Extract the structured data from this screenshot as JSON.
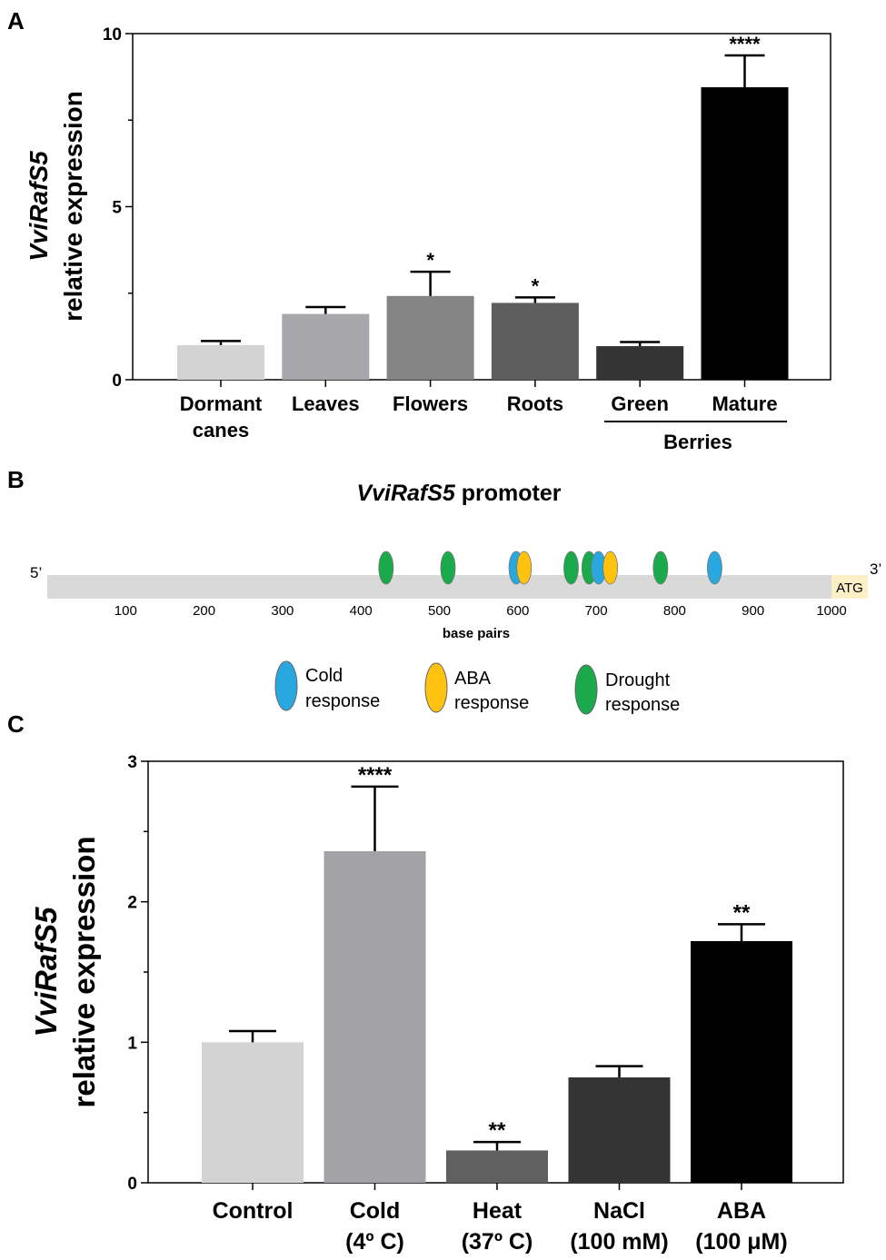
{
  "colors": {
    "axis": "#000000",
    "cold": "#29A8E0",
    "aba": "#FFC20E",
    "drought": "#1BAA4B",
    "promoter_bar": "#D9D9D9",
    "atg_box": "#FDEFC6"
  },
  "panel_a": {
    "letter": "A",
    "chart_data": {
      "type": "bar",
      "ylabel_italic": "VviRafS5",
      "ylabel": "relative expression",
      "ylim": [
        0,
        10
      ],
      "yticks": [
        0,
        5,
        10
      ],
      "bars": [
        {
          "name": "dormant-canes",
          "line1": "Dormant",
          "line2": "canes",
          "value": 1.0,
          "error": 0.12,
          "sig": "",
          "color": "#D3D3D3"
        },
        {
          "name": "leaves",
          "line1": "Leaves",
          "line2": "",
          "value": 1.9,
          "error": 0.2,
          "sig": "",
          "color": "#A7A7AB"
        },
        {
          "name": "flowers",
          "line1": "Flowers",
          "line2": "",
          "value": 2.42,
          "error": 0.7,
          "sig": "*",
          "color": "#848484"
        },
        {
          "name": "roots",
          "line1": "Roots",
          "line2": "",
          "value": 2.22,
          "error": 0.16,
          "sig": "*",
          "color": "#5E5E5E"
        },
        {
          "name": "green-berries",
          "line1": "Green",
          "line2": "",
          "value": 0.97,
          "error": 0.12,
          "sig": "",
          "color": "#343434"
        },
        {
          "name": "mature-berries",
          "line1": "Mature",
          "line2": "",
          "value": 8.45,
          "error": 0.92,
          "sig": "****",
          "color": "#000000"
        }
      ],
      "group_label": "Berries"
    }
  },
  "panel_b": {
    "letter": "B",
    "title_italic": "VviRafS5",
    "title_rest": " promoter",
    "five_prime": "5’",
    "three_prime": "3’",
    "atg": "ATG",
    "xlabel": "base pairs",
    "ticks": [
      100,
      200,
      300,
      400,
      500,
      600,
      700,
      800,
      900,
      1000
    ],
    "elements": [
      {
        "type": "drought",
        "pos": 432
      },
      {
        "type": "drought",
        "pos": 511
      },
      {
        "type": "cold",
        "pos": 598
      },
      {
        "type": "aba",
        "pos": 608
      },
      {
        "type": "drought",
        "pos": 668
      },
      {
        "type": "drought",
        "pos": 691
      },
      {
        "type": "cold",
        "pos": 703
      },
      {
        "type": "aba",
        "pos": 718
      },
      {
        "type": "drought",
        "pos": 782
      },
      {
        "type": "cold",
        "pos": 851
      }
    ],
    "legend": [
      {
        "type": "cold",
        "line1": "Cold",
        "line2": "response"
      },
      {
        "type": "aba",
        "line1": "ABA",
        "line2": "response"
      },
      {
        "type": "drought",
        "line1": "Drought",
        "line2": "response"
      }
    ]
  },
  "panel_c": {
    "letter": "C",
    "chart_data": {
      "type": "bar",
      "ylabel_italic": "VviRafS5",
      "ylabel": "relative expression",
      "ylim": [
        0,
        3
      ],
      "yticks": [
        0,
        1,
        2,
        3
      ],
      "bars": [
        {
          "name": "control",
          "line1": "Control",
          "line2": "",
          "value": 1.0,
          "error": 0.08,
          "sig": "",
          "color": "#D3D3D3"
        },
        {
          "name": "cold",
          "line1": "Cold",
          "line2": "(4º C)",
          "value": 2.36,
          "error": 0.46,
          "sig": "****",
          "color": "#A3A3A7"
        },
        {
          "name": "heat",
          "line1": "Heat",
          "line2": "(37º C)",
          "value": 0.23,
          "error": 0.06,
          "sig": "**",
          "color": "#606060"
        },
        {
          "name": "nacl",
          "line1": "NaCl",
          "line2": "(100 mM)",
          "value": 0.75,
          "error": 0.08,
          "sig": "",
          "color": "#343434"
        },
        {
          "name": "aba",
          "line1": "ABA",
          "line2": "(100 μM)",
          "value": 1.72,
          "error": 0.12,
          "sig": "**",
          "color": "#000000"
        }
      ]
    }
  }
}
